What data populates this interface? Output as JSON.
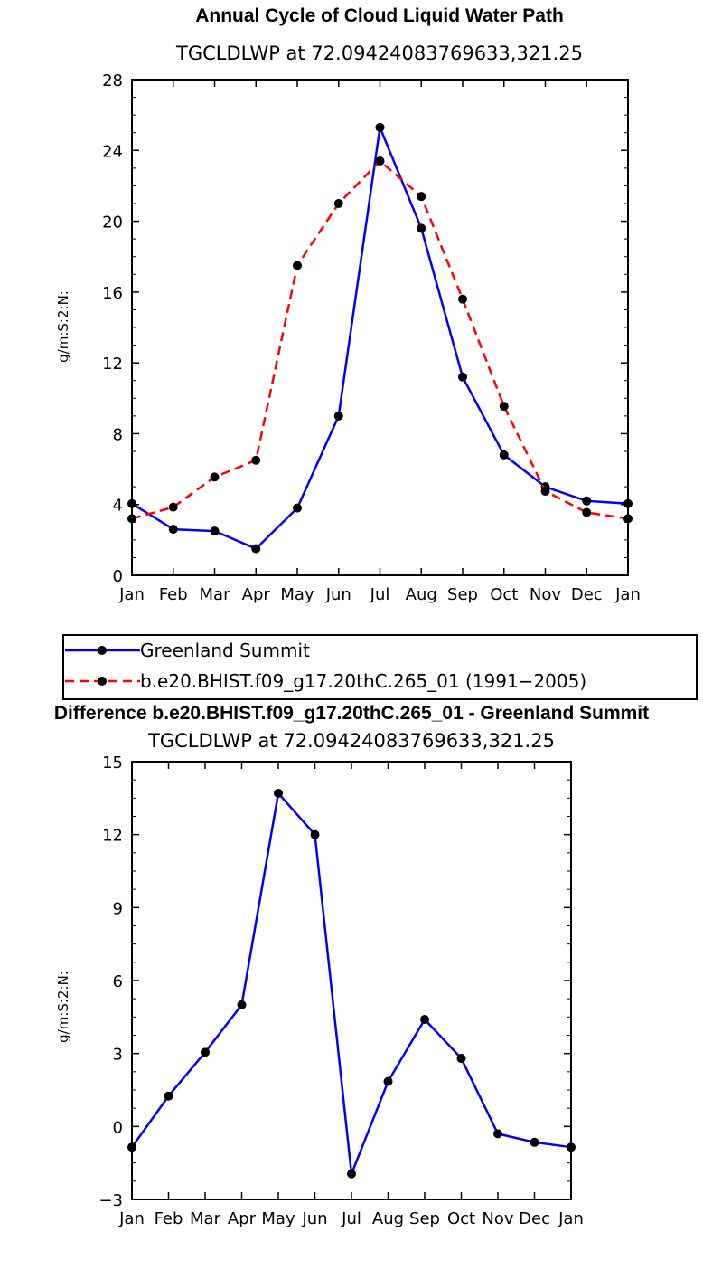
{
  "chart_data": [
    {
      "type": "line",
      "title": "Annual Cycle of Cloud Liquid Water Path",
      "subtitle": "TGCLDLWP  at  72.09424083769633,321.25",
      "xlabel": "",
      "ylabel": "g/m:S:2:N:",
      "categories": [
        "Jan",
        "Feb",
        "Mar",
        "Apr",
        "May",
        "Jun",
        "Jul",
        "Aug",
        "Sep",
        "Oct",
        "Nov",
        "Dec",
        "Jan"
      ],
      "yticks": [
        "0",
        "4",
        "8",
        "12",
        "16",
        "20",
        "24",
        "28"
      ],
      "ylim": [
        0,
        28
      ],
      "series": [
        {
          "name": "Greenland Summit",
          "color": "#0000ff",
          "dash": "solid",
          "values": [
            4.05,
            2.6,
            2.5,
            1.5,
            3.8,
            9.0,
            25.3,
            19.6,
            11.2,
            6.8,
            5.0,
            4.2,
            4.05
          ]
        },
        {
          "name": "b.e20.BHIST.f09_g17.20thC.265_01 (1991−2005)",
          "color": "#ff0000",
          "dash": "dashed",
          "values": [
            3.2,
            3.85,
            5.55,
            6.5,
            17.5,
            21.0,
            23.4,
            21.4,
            15.6,
            9.55,
            4.75,
            3.55,
            3.2
          ]
        }
      ],
      "legend": [
        "Greenland Summit",
        "b.e20.BHIST.f09_g17.20thC.265_01 (1991−2005)"
      ],
      "legend_position": "below"
    },
    {
      "type": "line",
      "title": "Difference b.e20.BHIST.f09_g17.20thC.265_01 - Greenland Summit",
      "subtitle": "TGCLDLWP  at  72.09424083769633,321.25",
      "xlabel": "",
      "ylabel": "g/m:S:2:N:",
      "categories": [
        "Jan",
        "Feb",
        "Mar",
        "Apr",
        "May",
        "Jun",
        "Jul",
        "Aug",
        "Sep",
        "Oct",
        "Nov",
        "Dec",
        "Jan"
      ],
      "yticks": [
        "−3",
        "0",
        "3",
        "6",
        "9",
        "12",
        "15"
      ],
      "ylim": [
        -3,
        15
      ],
      "series": [
        {
          "name": "Difference",
          "color": "#0000ff",
          "dash": "solid",
          "values": [
            -0.85,
            1.25,
            3.05,
            5.0,
            13.7,
            12.0,
            -1.95,
            1.85,
            4.4,
            2.8,
            -0.3,
            -0.65,
            -0.85
          ]
        }
      ]
    }
  ]
}
